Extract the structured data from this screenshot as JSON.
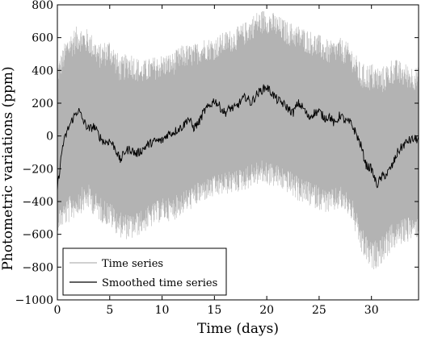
{
  "chart_data": {
    "type": "line",
    "title": "",
    "xlabel": "Time (days)",
    "ylabel": "Photometric variations (ppm)",
    "xlim": [
      0,
      34.5
    ],
    "ylim": [
      -1000,
      800
    ],
    "x_ticks": [
      0,
      5,
      10,
      15,
      20,
      25,
      30
    ],
    "y_ticks": [
      -1000,
      -800,
      -600,
      -400,
      -200,
      0,
      200,
      400,
      600,
      800
    ],
    "grid": false,
    "legend": {
      "position": "lower-left",
      "entries": [
        "Time series",
        "Smoothed time series"
      ]
    },
    "series": [
      {
        "name": "Time series",
        "color": "#b3b3b3",
        "envelope": {
          "x": [
            0,
            1,
            2,
            3,
            4,
            5,
            6,
            7,
            8,
            9,
            10,
            11,
            12,
            13,
            14,
            15,
            16,
            17,
            18,
            19,
            20,
            21,
            22,
            23,
            24,
            25,
            26,
            27,
            28,
            29,
            30,
            31,
            32,
            33,
            34.5
          ],
          "upper": [
            450,
            620,
            680,
            650,
            560,
            600,
            480,
            520,
            460,
            480,
            500,
            510,
            560,
            560,
            600,
            600,
            640,
            660,
            700,
            760,
            780,
            740,
            700,
            680,
            650,
            620,
            580,
            600,
            560,
            440,
            450,
            420,
            480,
            450,
            420
          ],
          "lower": [
            -580,
            -540,
            -480,
            -450,
            -520,
            -560,
            -620,
            -640,
            -600,
            -560,
            -520,
            -520,
            -480,
            -440,
            -400,
            -380,
            -360,
            -350,
            -330,
            -300,
            -300,
            -320,
            -350,
            -400,
            -430,
            -450,
            -480,
            -450,
            -500,
            -720,
            -830,
            -780,
            -700,
            -660,
            -620
          ]
        }
      },
      {
        "name": "Smoothed time series",
        "color": "#000000",
        "x": [
          0,
          0.5,
          1,
          1.5,
          2,
          2.5,
          3,
          3.5,
          4,
          4.5,
          5,
          5.5,
          6,
          6.5,
          7,
          7.5,
          8,
          8.5,
          9,
          9.5,
          10,
          10.5,
          11,
          11.5,
          12,
          12.5,
          13,
          13.5,
          14,
          14.5,
          15,
          15.5,
          16,
          16.5,
          17,
          17.5,
          18,
          18.5,
          19,
          19.5,
          20,
          20.5,
          21,
          21.5,
          22,
          22.5,
          23,
          23.5,
          24,
          24.5,
          25,
          25.5,
          26,
          26.5,
          27,
          27.5,
          28,
          28.5,
          29,
          29.5,
          30,
          30.5,
          31,
          31.5,
          32,
          32.5,
          33,
          33.5,
          34,
          34.5
        ],
        "y": [
          -320,
          -60,
          40,
          110,
          160,
          90,
          40,
          60,
          0,
          -40,
          -30,
          -70,
          -150,
          -90,
          -80,
          -110,
          -90,
          -60,
          -40,
          -30,
          -30,
          10,
          20,
          40,
          60,
          110,
          50,
          80,
          150,
          180,
          220,
          180,
          140,
          170,
          170,
          210,
          240,
          200,
          250,
          280,
          300,
          260,
          220,
          200,
          170,
          140,
          200,
          170,
          110,
          140,
          150,
          110,
          120,
          70,
          130,
          90,
          80,
          20,
          -60,
          -180,
          -200,
          -300,
          -250,
          -230,
          -180,
          -100,
          -60,
          -30,
          -20,
          -20
        ]
      }
    ]
  }
}
